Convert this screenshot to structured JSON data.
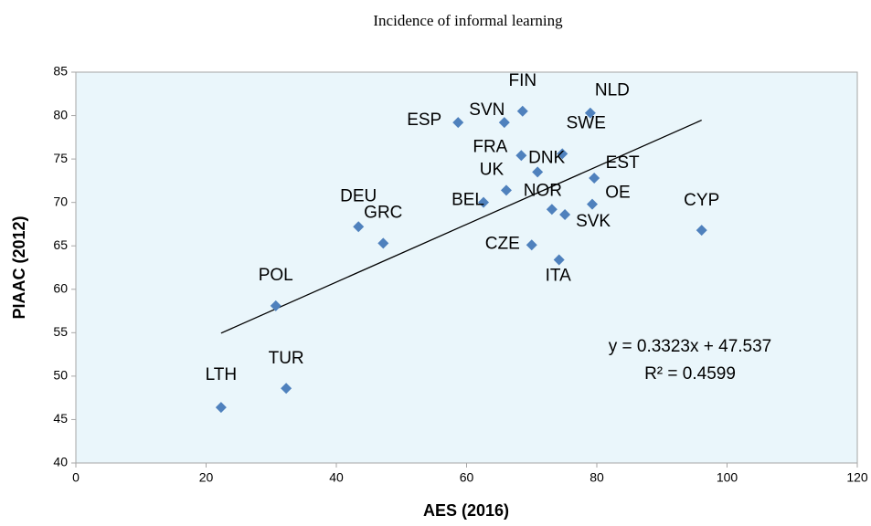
{
  "chart_data": {
    "type": "scatter",
    "title": "Incidence of informal learning",
    "x_label": "AES (2016)",
    "y_label": "PIAAC (2012)",
    "color": "#4f81bd",
    "xlim": [
      0,
      120
    ],
    "xticks": [
      0,
      20,
      40,
      60,
      80,
      100,
      120
    ],
    "ylim": [
      40,
      85
    ],
    "yticks": [
      40,
      45,
      50,
      55,
      60,
      65,
      70,
      75,
      80,
      85
    ],
    "points": [
      {
        "label": "LTH",
        "x": 22.3,
        "y": 46.4
      },
      {
        "label": "TUR",
        "x": 32.3,
        "y": 48.6
      },
      {
        "label": "POL",
        "x": 30.7,
        "y": 58.1
      },
      {
        "label": "DEU",
        "x": 43.4,
        "y": 67.2
      },
      {
        "label": "GRC",
        "x": 47.2,
        "y": 65.3
      },
      {
        "label": "ESP",
        "x": 58.7,
        "y": 79.2
      },
      {
        "label": "SVN",
        "x": 65.8,
        "y": 79.2
      },
      {
        "label": "FIN",
        "x": 68.6,
        "y": 80.5
      },
      {
        "label": "NLD",
        "x": 79.0,
        "y": 80.3
      },
      {
        "label": "SWE",
        "x": 74.7,
        "y": 75.6
      },
      {
        "label": "FRA",
        "x": 68.4,
        "y": 75.4
      },
      {
        "label": "DNK",
        "x": 70.9,
        "y": 73.5
      },
      {
        "label": "EST",
        "x": 79.6,
        "y": 72.8
      },
      {
        "label": "UK",
        "x": 66.1,
        "y": 71.4
      },
      {
        "label": "BEL",
        "x": 62.6,
        "y": 70.0
      },
      {
        "label": "NOR",
        "x": 73.1,
        "y": 69.2
      },
      {
        "label": "OE",
        "x": 79.3,
        "y": 69.8
      },
      {
        "label": "SVK",
        "x": 75.1,
        "y": 68.6
      },
      {
        "label": "CYP",
        "x": 96.1,
        "y": 66.8
      },
      {
        "label": "CZE",
        "x": 70.0,
        "y": 65.1
      },
      {
        "label": "ITA",
        "x": 74.2,
        "y": 63.4
      }
    ],
    "trendline": {
      "slope": 0.3323,
      "intercept": 47.537,
      "equation": "y = 0.3323x + 47.537",
      "r2": "R² = 0.4599"
    }
  }
}
